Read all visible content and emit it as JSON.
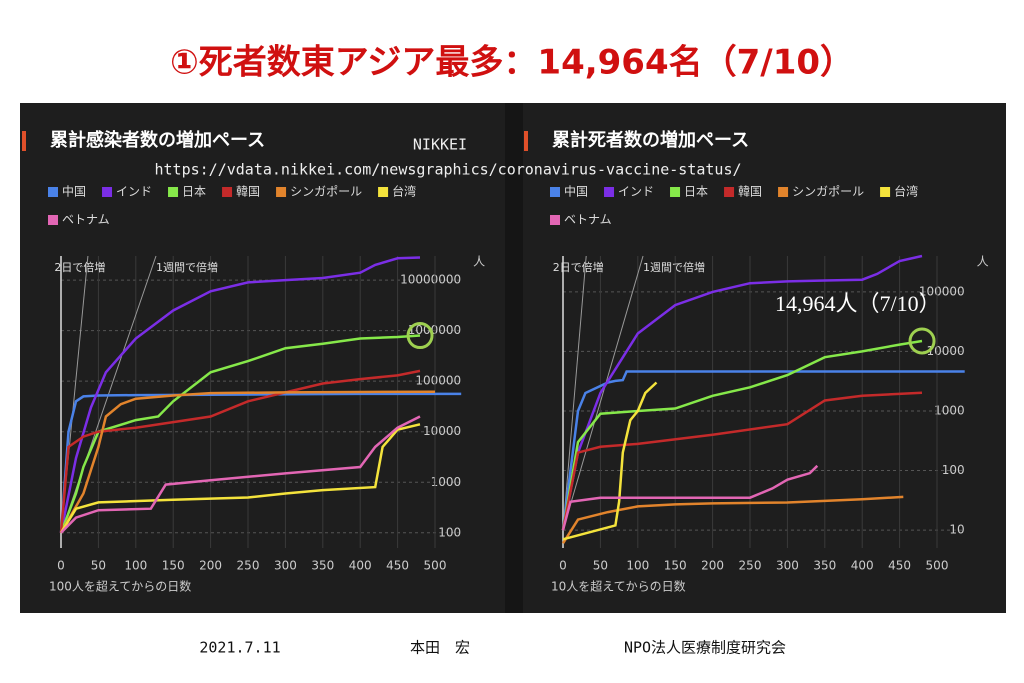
{
  "header": {
    "title": "①死者数東アジア最多：14,964名（7/10）"
  },
  "source": {
    "name": "NIKKEI",
    "url": "https://vdata.nikkei.com/newsgraphics/coronavirus-vaccine-status/"
  },
  "footer": {
    "date": "2021.7.11",
    "author": "本田　宏",
    "organization": "NPO法人医療制度研究会"
  },
  "chart_data": [
    {
      "type": "line",
      "title": "累計感染者数の増加ペース",
      "x_label": "100人を超えてからの日数",
      "unit": "人",
      "log_scale": true,
      "grid": true,
      "xlim": [
        0,
        535
      ],
      "xticks": [
        0,
        50,
        100,
        150,
        200,
        250,
        300,
        350,
        400,
        450,
        500
      ],
      "ylim": [
        50,
        30000000
      ],
      "yticks": [
        100,
        1000,
        10000,
        100000,
        1000000,
        10000000
      ],
      "reference_lines": [
        {
          "label": "2日で倍増",
          "x": [
            0,
            36
          ],
          "values": [
            100,
            30000000
          ]
        },
        {
          "label": "1週間で倍増",
          "x": [
            0,
            127
          ],
          "values": [
            100,
            30000000
          ]
        }
      ],
      "series": [
        {
          "name": "中国",
          "color": "#4a82e8",
          "x": [
            0,
            10,
            20,
            30,
            50,
            100,
            200,
            300,
            400,
            535
          ],
          "values": [
            100,
            10000,
            40000,
            50000,
            52000,
            53000,
            54000,
            55000,
            56000,
            56000
          ]
        },
        {
          "name": "インド",
          "color": "#7b2ee6",
          "x": [
            0,
            20,
            40,
            60,
            100,
            150,
            200,
            250,
            300,
            350,
            400,
            420,
            450,
            480
          ],
          "values": [
            100,
            3000,
            30000,
            150000,
            700000,
            2500000,
            6000000,
            9000000,
            10000000,
            11000000,
            14000000,
            20000000,
            27000000,
            28000000
          ]
        },
        {
          "name": "日本",
          "color": "#86e84a",
          "x": [
            0,
            20,
            30,
            50,
            100,
            130,
            150,
            200,
            250,
            300,
            350,
            400,
            450,
            480
          ],
          "values": [
            100,
            600,
            2000,
            10000,
            17000,
            20000,
            40000,
            150000,
            250000,
            450000,
            550000,
            700000,
            750000,
            800000
          ]
        },
        {
          "name": "韓国",
          "color": "#c42a2a",
          "x": [
            0,
            10,
            30,
            50,
            100,
            200,
            250,
            300,
            350,
            400,
            450,
            480
          ],
          "values": [
            100,
            5000,
            8000,
            10000,
            12000,
            20000,
            40000,
            60000,
            90000,
            110000,
            130000,
            160000
          ]
        },
        {
          "name": "シンガポール",
          "color": "#e2842c",
          "x": [
            0,
            30,
            50,
            60,
            80,
            100,
            150,
            200,
            300,
            400,
            500
          ],
          "values": [
            100,
            600,
            5000,
            20000,
            35000,
            45000,
            52000,
            58000,
            60000,
            61000,
            62000
          ]
        },
        {
          "name": "台湾",
          "color": "#f4e33c",
          "x": [
            0,
            20,
            50,
            150,
            250,
            300,
            350,
            420,
            430,
            450,
            480
          ],
          "values": [
            100,
            300,
            400,
            450,
            500,
            600,
            700,
            800,
            5000,
            11000,
            14000
          ]
        },
        {
          "name": "ベトナム",
          "color": "#e266b4",
          "x": [
            0,
            20,
            50,
            120,
            140,
            200,
            300,
            400,
            420,
            450,
            480
          ],
          "values": [
            100,
            200,
            280,
            300,
            900,
            1100,
            1500,
            2000,
            5000,
            12000,
            20000
          ]
        }
      ]
    },
    {
      "type": "line",
      "title": "累計死者数の増加ペース",
      "x_label": "10人を超えてからの日数",
      "unit": "人",
      "log_scale": true,
      "grid": true,
      "xlim": [
        0,
        537
      ],
      "xticks": [
        0,
        50,
        100,
        150,
        200,
        250,
        300,
        350,
        400,
        450,
        500
      ],
      "ylim": [
        5,
        400000
      ],
      "yticks": [
        10,
        100,
        1000,
        10000,
        100000
      ],
      "reference_lines": [
        {
          "label": "2日で倍増",
          "x": [
            0,
            31
          ],
          "values": [
            10,
            400000
          ]
        },
        {
          "label": "1週間で倍増",
          "x": [
            0,
            107
          ],
          "values": [
            10,
            400000
          ]
        }
      ],
      "annotations": [
        {
          "text": "14,964人（7/10）"
        }
      ],
      "series": [
        {
          "name": "中国",
          "color": "#4a82e8",
          "x": [
            0,
            20,
            30,
            60,
            70,
            80,
            85,
            537
          ],
          "values": [
            10,
            1000,
            2000,
            3000,
            3200,
            3300,
            4600,
            4600
          ]
        },
        {
          "name": "インド",
          "color": "#7b2ee6",
          "x": [
            0,
            20,
            50,
            100,
            150,
            200,
            250,
            300,
            350,
            400,
            420,
            450,
            480
          ],
          "values": [
            10,
            200,
            2000,
            20000,
            60000,
            100000,
            140000,
            150000,
            155000,
            160000,
            200000,
            330000,
            400000
          ]
        },
        {
          "name": "日本",
          "color": "#86e84a",
          "x": [
            0,
            20,
            50,
            100,
            150,
            200,
            250,
            300,
            350,
            400,
            450,
            480
          ],
          "values": [
            10,
            300,
            900,
            1000,
            1100,
            1800,
            2500,
            4000,
            8000,
            10000,
            13000,
            14964
          ]
        },
        {
          "name": "韓国",
          "color": "#c42a2a",
          "x": [
            0,
            20,
            50,
            100,
            200,
            300,
            350,
            400,
            480
          ],
          "values": [
            10,
            200,
            250,
            280,
            400,
            600,
            1500,
            1800,
            2030
          ]
        },
        {
          "name": "シンガポール",
          "color": "#e2842c",
          "x": [
            0,
            20,
            60,
            100,
            150,
            200,
            300,
            400,
            455
          ],
          "values": [
            6,
            15,
            20,
            25,
            27,
            28,
            29,
            33,
            36
          ]
        },
        {
          "name": "台湾",
          "color": "#f4e33c",
          "x": [
            0,
            70,
            75,
            80,
            90,
            100,
            110,
            125
          ],
          "values": [
            7,
            12,
            30,
            200,
            700,
            1000,
            2000,
            3000
          ]
        },
        {
          "name": "ベトナム",
          "color": "#e266b4",
          "x": [
            0,
            10,
            50,
            100,
            200,
            250,
            280,
            300,
            330,
            340
          ],
          "values": [
            10,
            30,
            35,
            35,
            35,
            35,
            50,
            70,
            90,
            120
          ]
        }
      ]
    }
  ]
}
